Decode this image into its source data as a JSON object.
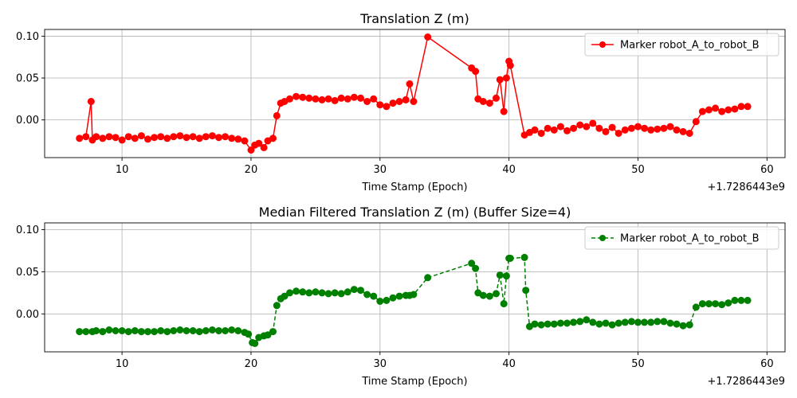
{
  "chart_data": [
    {
      "type": "line",
      "title": "Translation Z (m)",
      "xlabel": "Time Stamp (Epoch)",
      "x_offset_label": "+1.7286443e9",
      "ylabel": "",
      "xlim": [
        4.0,
        61.4
      ],
      "ylim": [
        -0.045,
        0.108
      ],
      "xticks": [
        10,
        20,
        30,
        40,
        50,
        60
      ],
      "xtick_labels": [
        "10",
        "20",
        "30",
        "40",
        "50",
        "60"
      ],
      "yticks": [
        0.0,
        0.05,
        0.1
      ],
      "ytick_labels": [
        "0.00",
        "0.05",
        "0.10"
      ],
      "grid": true,
      "legend_position": "top-right",
      "series": [
        {
          "name": "Marker robot_A_to_robot_B",
          "color": "#ff0000",
          "line_style": "solid",
          "marker": "circle",
          "x": [
            6.7,
            7.2,
            7.6,
            7.7,
            8.0,
            8.5,
            9.0,
            9.5,
            10.0,
            10.5,
            11.0,
            11.5,
            12.0,
            12.5,
            13.0,
            13.5,
            14.0,
            14.5,
            15.0,
            15.5,
            16.0,
            16.5,
            17.0,
            17.5,
            18.0,
            18.5,
            19.0,
            19.5,
            20.0,
            20.3,
            20.6,
            21.0,
            21.3,
            21.7,
            22.0,
            22.3,
            22.6,
            23.0,
            23.5,
            24.0,
            24.5,
            25.0,
            25.5,
            26.0,
            26.5,
            27.0,
            27.5,
            28.0,
            28.5,
            29.0,
            29.5,
            30.0,
            30.5,
            31.0,
            31.5,
            32.0,
            32.3,
            32.6,
            33.7,
            37.1,
            37.4,
            37.6,
            38.0,
            38.5,
            39.0,
            39.3,
            39.6,
            39.8,
            40.0,
            40.1,
            41.2,
            41.6,
            42.0,
            42.5,
            43.0,
            43.5,
            44.0,
            44.5,
            45.0,
            45.5,
            46.0,
            46.5,
            47.0,
            47.5,
            48.0,
            48.5,
            49.0,
            49.5,
            50.0,
            50.5,
            51.0,
            51.5,
            52.0,
            52.5,
            53.0,
            53.5,
            54.0,
            54.5,
            55.0,
            55.5,
            56.0,
            56.5,
            57.0,
            57.5,
            58.0,
            58.5
          ],
          "y": [
            -0.022,
            -0.02,
            0.022,
            -0.024,
            -0.02,
            -0.022,
            -0.02,
            -0.021,
            -0.024,
            -0.02,
            -0.022,
            -0.019,
            -0.023,
            -0.021,
            -0.02,
            -0.022,
            -0.02,
            -0.019,
            -0.021,
            -0.02,
            -0.022,
            -0.02,
            -0.019,
            -0.021,
            -0.02,
            -0.022,
            -0.023,
            -0.025,
            -0.036,
            -0.03,
            -0.028,
            -0.033,
            -0.025,
            -0.022,
            0.005,
            0.02,
            0.022,
            0.025,
            0.028,
            0.027,
            0.026,
            0.025,
            0.024,
            0.025,
            0.023,
            0.026,
            0.025,
            0.027,
            0.026,
            0.022,
            0.025,
            0.018,
            0.016,
            0.02,
            0.022,
            0.024,
            0.043,
            0.022,
            0.099,
            0.062,
            0.058,
            0.025,
            0.022,
            0.02,
            0.026,
            0.048,
            0.01,
            0.05,
            0.07,
            0.065,
            -0.018,
            -0.015,
            -0.012,
            -0.016,
            -0.01,
            -0.012,
            -0.008,
            -0.013,
            -0.01,
            -0.006,
            -0.008,
            -0.004,
            -0.01,
            -0.014,
            -0.009,
            -0.016,
            -0.012,
            -0.01,
            -0.008,
            -0.01,
            -0.012,
            -0.011,
            -0.01,
            -0.008,
            -0.012,
            -0.014,
            -0.016,
            -0.002,
            0.01,
            0.012,
            0.014,
            0.01,
            0.012,
            0.013,
            0.016,
            0.016
          ]
        }
      ]
    },
    {
      "type": "line",
      "title": "Median Filtered Translation Z (m) (Buffer Size=4)",
      "xlabel": "Time Stamp (Epoch)",
      "x_offset_label": "+1.7286443e9",
      "ylabel": "",
      "xlim": [
        4.0,
        61.4
      ],
      "ylim": [
        -0.045,
        0.108
      ],
      "xticks": [
        10,
        20,
        30,
        40,
        50,
        60
      ],
      "xtick_labels": [
        "10",
        "20",
        "30",
        "40",
        "50",
        "60"
      ],
      "yticks": [
        0.0,
        0.05,
        0.1
      ],
      "ytick_labels": [
        "0.00",
        "0.05",
        "0.10"
      ],
      "grid": true,
      "legend_position": "top-right",
      "series": [
        {
          "name": "Marker robot_A_to_robot_B",
          "color": "#008000",
          "line_style": "dashed",
          "marker": "circle",
          "x": [
            6.7,
            7.2,
            7.7,
            8.0,
            8.5,
            9.0,
            9.5,
            10.0,
            10.5,
            11.0,
            11.5,
            12.0,
            12.5,
            13.0,
            13.5,
            14.0,
            14.5,
            15.0,
            15.5,
            16.0,
            16.5,
            17.0,
            17.5,
            18.0,
            18.5,
            19.0,
            19.5,
            19.8,
            20.1,
            20.3,
            20.6,
            21.0,
            21.3,
            21.7,
            22.0,
            22.3,
            22.6,
            23.0,
            23.5,
            24.0,
            24.5,
            25.0,
            25.5,
            26.0,
            26.5,
            27.0,
            27.5,
            28.0,
            28.5,
            29.0,
            29.5,
            30.0,
            30.5,
            31.0,
            31.5,
            32.0,
            32.3,
            32.6,
            33.7,
            37.1,
            37.4,
            37.6,
            38.0,
            38.5,
            39.0,
            39.3,
            39.6,
            39.8,
            40.0,
            40.1,
            41.2,
            41.3,
            41.6,
            42.0,
            42.5,
            43.0,
            43.5,
            44.0,
            44.5,
            45.0,
            45.5,
            46.0,
            46.5,
            47.0,
            47.5,
            48.0,
            48.5,
            49.0,
            49.5,
            50.0,
            50.5,
            51.0,
            51.5,
            52.0,
            52.5,
            53.0,
            53.5,
            54.0,
            54.5,
            55.0,
            55.5,
            56.0,
            56.5,
            57.0,
            57.5,
            58.0,
            58.5
          ],
          "y": [
            -0.021,
            -0.021,
            -0.021,
            -0.02,
            -0.021,
            -0.019,
            -0.02,
            -0.02,
            -0.021,
            -0.02,
            -0.021,
            -0.021,
            -0.021,
            -0.02,
            -0.021,
            -0.02,
            -0.019,
            -0.02,
            -0.02,
            -0.021,
            -0.02,
            -0.019,
            -0.02,
            -0.02,
            -0.019,
            -0.02,
            -0.022,
            -0.024,
            -0.034,
            -0.035,
            -0.028,
            -0.026,
            -0.025,
            -0.021,
            0.01,
            0.018,
            0.021,
            0.025,
            0.027,
            0.026,
            0.025,
            0.026,
            0.025,
            0.024,
            0.025,
            0.024,
            0.026,
            0.029,
            0.028,
            0.023,
            0.021,
            0.015,
            0.016,
            0.019,
            0.021,
            0.022,
            0.022,
            0.023,
            0.043,
            0.06,
            0.054,
            0.025,
            0.022,
            0.021,
            0.024,
            0.046,
            0.012,
            0.045,
            0.066,
            0.066,
            0.067,
            0.028,
            -0.015,
            -0.012,
            -0.013,
            -0.012,
            -0.012,
            -0.011,
            -0.011,
            -0.01,
            -0.009,
            -0.007,
            -0.01,
            -0.012,
            -0.011,
            -0.013,
            -0.011,
            -0.01,
            -0.009,
            -0.01,
            -0.01,
            -0.01,
            -0.009,
            -0.009,
            -0.011,
            -0.012,
            -0.014,
            -0.013,
            0.008,
            0.012,
            0.012,
            0.012,
            0.011,
            0.013,
            0.016,
            0.016,
            0.016
          ]
        }
      ]
    }
  ]
}
